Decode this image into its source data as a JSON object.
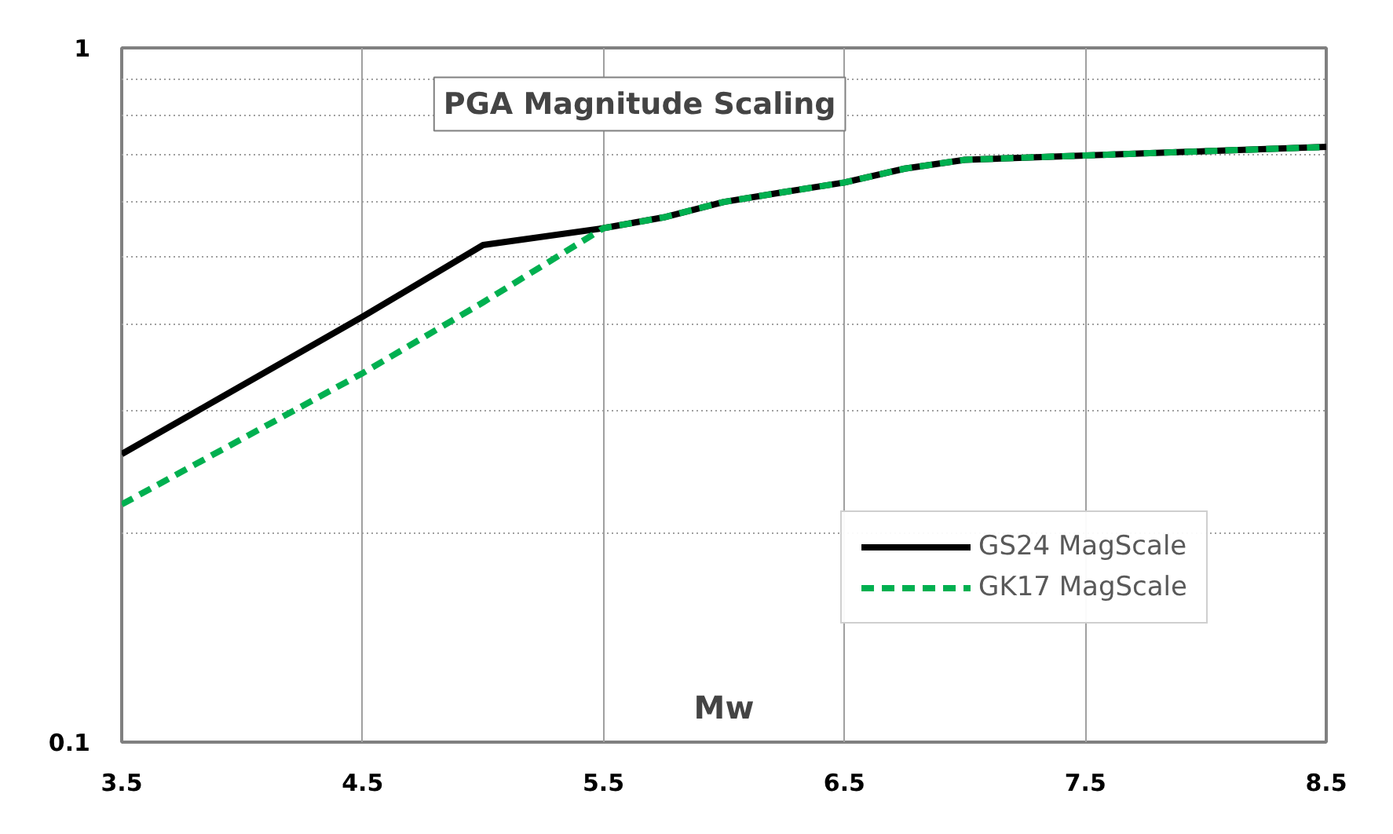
{
  "chart_data": {
    "type": "line",
    "title": "PGA Magnitude Scaling",
    "xlabel": "Mw",
    "x": [
      3.5,
      4.5,
      5.0,
      5.5,
      5.75,
      6.0,
      6.25,
      6.5,
      6.75,
      7.0,
      7.5,
      8.0,
      8.5
    ],
    "series": [
      {
        "name": "GS24 MagScale",
        "color": "#000000",
        "line_style": "solid",
        "values": [
          0.26,
          0.41,
          0.52,
          0.55,
          0.57,
          0.6,
          0.62,
          0.64,
          0.67,
          0.69,
          0.7,
          0.71,
          0.72
        ]
      },
      {
        "name": "GK17 MagScale",
        "color": "#00b050",
        "line_style": "dashed",
        "values": [
          0.22,
          0.34,
          0.43,
          0.55,
          0.57,
          0.6,
          0.62,
          0.64,
          0.67,
          0.69,
          0.7,
          0.71,
          0.72
        ]
      }
    ],
    "log": "y",
    "xlim": [
      3.5,
      8.5
    ],
    "ylim": [
      0.1,
      1
    ],
    "xticks": [
      3.5,
      4.5,
      5.5,
      6.5,
      7.5,
      8.5
    ],
    "yticks": [
      0.1,
      {
        "value": 0.2,
        "label": null
      },
      {
        "value": 0.3,
        "label": null
      },
      {
        "value": 0.4,
        "label": null
      },
      {
        "value": 0.5,
        "label": null
      },
      {
        "value": 0.6,
        "label": null
      },
      {
        "value": 0.7,
        "label": null
      },
      {
        "value": 0.8,
        "label": null
      },
      {
        "value": 0.9,
        "label": null
      },
      1
    ],
    "grid": true,
    "legend": "bottom right",
    "marker": "none"
  }
}
